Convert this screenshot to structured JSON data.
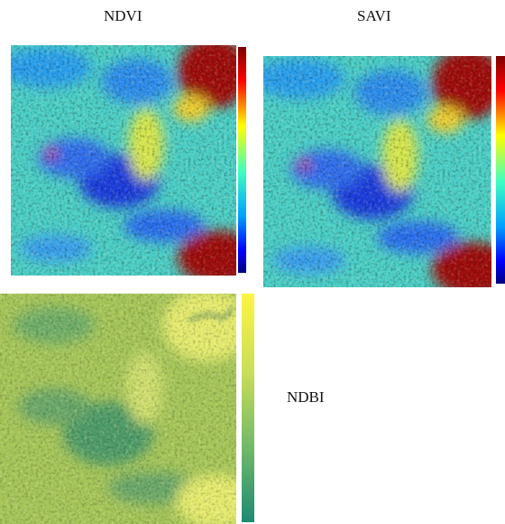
{
  "labels": {
    "ndvi": "NDVI",
    "savi": "SAVI",
    "ndbi": "NDBI"
  }
}
